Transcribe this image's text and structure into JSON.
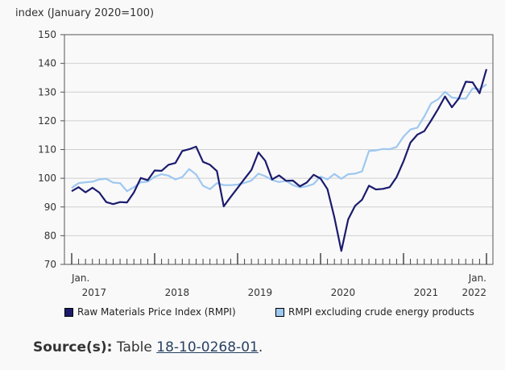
{
  "chart_data": {
    "type": "line",
    "ylabel": "index (January 2020=100)",
    "ylim": [
      70,
      150
    ],
    "yticks": [
      70,
      80,
      90,
      100,
      110,
      120,
      130,
      140,
      150
    ],
    "x_start": "Jan. 2017",
    "x_end": "Jan. 2022",
    "x_tick_labels": [
      {
        "index": 0,
        "text": "Jan."
      },
      {
        "index": 60,
        "text": "Jan."
      }
    ],
    "year_labels": [
      {
        "index": 5,
        "text": "2017"
      },
      {
        "index": 17,
        "text": "2018"
      },
      {
        "index": 29,
        "text": "2019"
      },
      {
        "index": 41,
        "text": "2020"
      },
      {
        "index": 53,
        "text": "2021"
      },
      {
        "index": 60,
        "text": "2022"
      }
    ],
    "series": [
      {
        "name": "Raw Materials Price Index (RMPI)",
        "color": "#1b1b6e",
        "values": [
          95.5,
          96.9,
          95.1,
          96.7,
          95.0,
          91.7,
          91.0,
          91.7,
          91.6,
          95.1,
          100.1,
          99.3,
          102.7,
          102.6,
          104.7,
          105.3,
          109.5,
          110.1,
          111.0,
          105.7,
          104.7,
          102.5,
          90.2,
          93.5,
          96.6,
          99.8,
          102.9,
          109.0,
          106.1,
          99.6,
          101.0,
          99.1,
          99.2,
          97.2,
          98.5,
          101.2,
          99.9,
          96.2,
          86.3,
          74.7,
          85.7,
          90.4,
          92.5,
          97.4,
          96.1,
          96.3,
          96.9,
          100.4,
          105.9,
          112.4,
          115.2,
          116.4,
          120.1,
          124.1,
          128.5,
          124.7,
          127.8,
          133.6,
          133.4,
          129.6,
          138.0
        ]
      },
      {
        "name": "RMPI excluding crude energy products",
        "color": "#9ec8f0",
        "values": [
          96.6,
          98.3,
          98.6,
          98.8,
          99.6,
          99.8,
          98.5,
          98.3,
          95.5,
          96.9,
          98.6,
          98.8,
          100.5,
          101.4,
          100.9,
          99.6,
          100.4,
          103.2,
          101.3,
          97.4,
          96.2,
          98.3,
          97.6,
          97.6,
          97.8,
          98.4,
          99.2,
          101.6,
          100.7,
          99.4,
          98.7,
          99.1,
          97.6,
          96.8,
          97.2,
          98.0,
          100.6,
          99.6,
          101.5,
          99.8,
          101.4,
          101.6,
          102.4,
          109.5,
          109.7,
          110.2,
          110.1,
          110.9,
          114.5,
          117.0,
          117.6,
          121.5,
          126.1,
          127.5,
          130.1,
          128.1,
          127.8,
          127.7,
          131.3,
          131.0,
          132.7
        ]
      }
    ]
  },
  "legend": {
    "items": [
      {
        "label": "Raw Materials Price Index (RMPI)",
        "color": "#1b1b6e"
      },
      {
        "label": "RMPI excluding crude energy products",
        "color": "#9ec8f0"
      }
    ]
  },
  "source": {
    "label": "Source(s):",
    "prefix": "Table",
    "link_text": "18-10-0268-01",
    "suffix": "."
  }
}
